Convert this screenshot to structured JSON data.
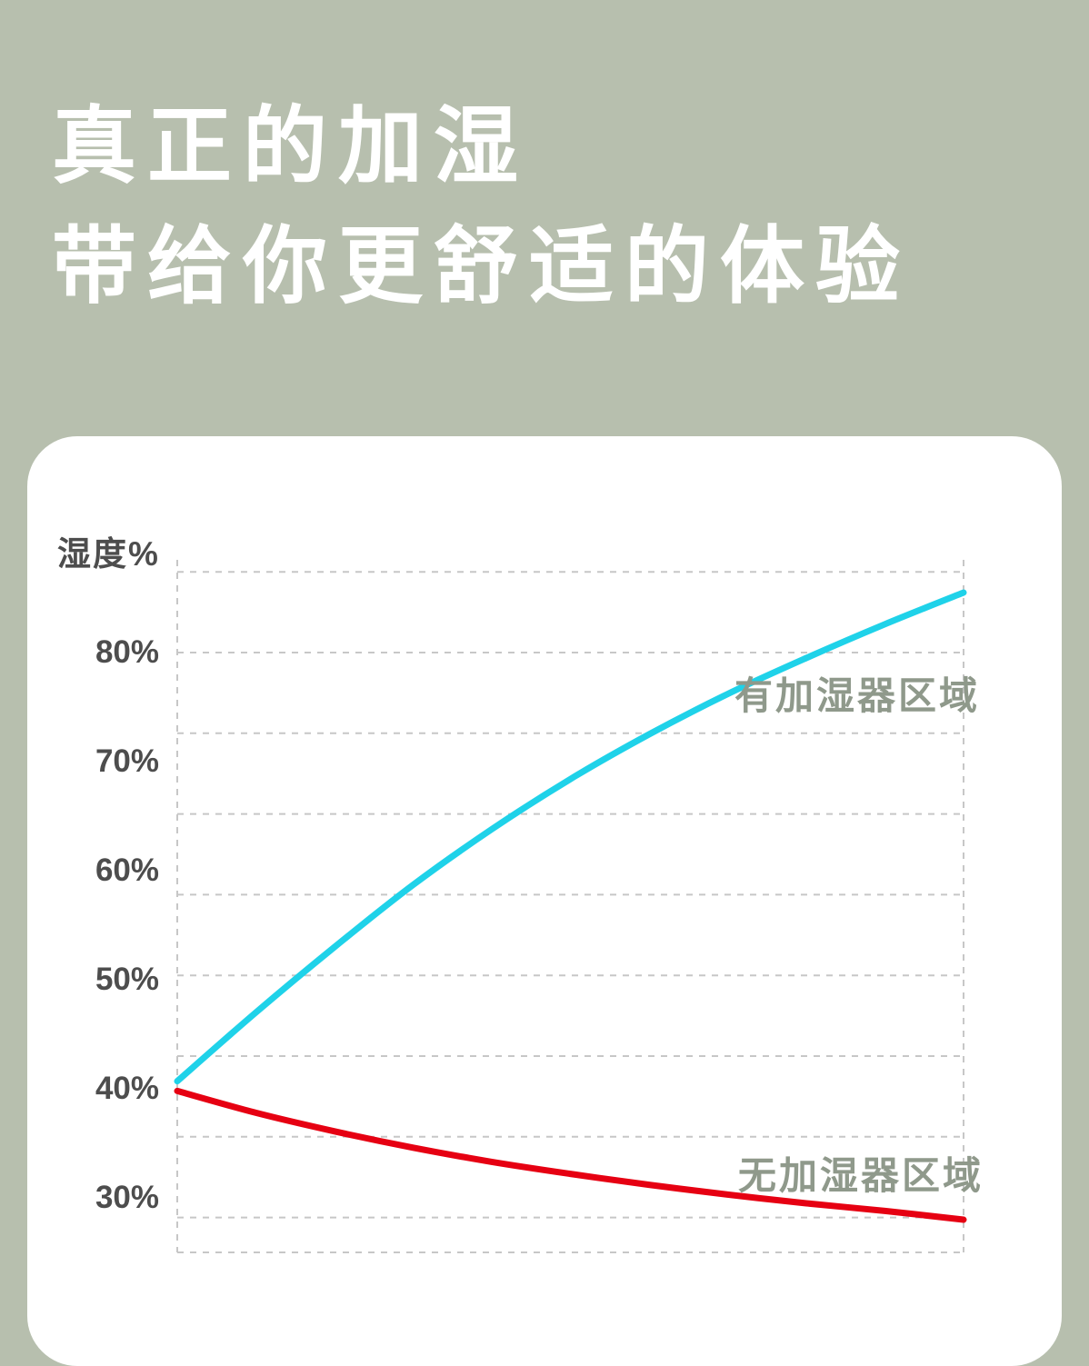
{
  "page": {
    "background_color": "#b7bfae",
    "card_color": "#ffffff",
    "title_color": "#ffffff",
    "title_line1": "真正的加湿",
    "title_line2": "带给你更舒适的体验"
  },
  "chart_data": {
    "type": "line",
    "title": "",
    "xlabel": "",
    "ylabel": "湿度%",
    "ylim": [
      25,
      88.5
    ],
    "grid": "horizontal-dashed",
    "legend_position": "inline-annotations",
    "y_ticks": [
      {
        "label": "80%",
        "value": 80
      },
      {
        "label": "70%",
        "value": 70
      },
      {
        "label": "60%",
        "value": 60
      },
      {
        "label": "50%",
        "value": 50
      },
      {
        "label": "40%",
        "value": 40
      },
      {
        "label": "30%",
        "value": 30
      }
    ],
    "gridlines_y_values": [
      87.4,
      80,
      72.6,
      65.2,
      57.8,
      50.4,
      43.0,
      35.6,
      28.2
    ],
    "baseline_value": 25,
    "colors": {
      "grid": "#c7c7c7",
      "tick": "#4d4d4d",
      "series_label": "#8f998b"
    },
    "series": [
      {
        "id": "with-humidifier",
        "name": "有加湿器区域",
        "color": "#1fd2e9",
        "points": [
          [
            0,
            40.7
          ],
          [
            0.1,
            47.0
          ],
          [
            0.2,
            53.0
          ],
          [
            0.3,
            58.7
          ],
          [
            0.4,
            63.8
          ],
          [
            0.5,
            68.4
          ],
          [
            0.6,
            72.5
          ],
          [
            0.7,
            76.2
          ],
          [
            0.8,
            79.5
          ],
          [
            0.9,
            82.6
          ],
          [
            1,
            85.5
          ]
        ]
      },
      {
        "id": "without-humidifier",
        "name": "无加湿器区域",
        "color": "#e60012",
        "points": [
          [
            0,
            39.8
          ],
          [
            0.1,
            37.8
          ],
          [
            0.2,
            36.1
          ],
          [
            0.3,
            34.6
          ],
          [
            0.4,
            33.3
          ],
          [
            0.5,
            32.2
          ],
          [
            0.6,
            31.2
          ],
          [
            0.7,
            30.3
          ],
          [
            0.8,
            29.5
          ],
          [
            0.9,
            28.8
          ],
          [
            1,
            28.0
          ]
        ]
      }
    ]
  }
}
